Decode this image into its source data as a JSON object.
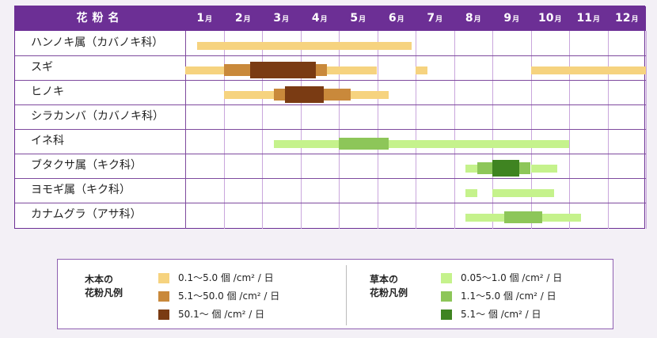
{
  "header": {
    "name_label": "花粉名",
    "months": [
      {
        "num": "1",
        "unit": "月"
      },
      {
        "num": "2",
        "unit": "月"
      },
      {
        "num": "3",
        "unit": "月"
      },
      {
        "num": "4",
        "unit": "月"
      },
      {
        "num": "5",
        "unit": "月"
      },
      {
        "num": "6",
        "unit": "月"
      },
      {
        "num": "7",
        "unit": "月"
      },
      {
        "num": "8",
        "unit": "月"
      },
      {
        "num": "9",
        "unit": "月"
      },
      {
        "num": "10",
        "unit": "月"
      },
      {
        "num": "11",
        "unit": "月"
      },
      {
        "num": "12",
        "unit": "月"
      }
    ]
  },
  "rows": [
    {
      "label": "ハンノキ属（カバノキ科）",
      "type": "tree",
      "bars": [
        {
          "start": 1.3,
          "end": 6.9,
          "level": 1
        }
      ]
    },
    {
      "label": "スギ",
      "type": "tree",
      "bars": [
        {
          "start": 1.0,
          "end": 2.0,
          "level": 1
        },
        {
          "start": 2.0,
          "end": 2.7,
          "level": 2
        },
        {
          "start": 2.7,
          "end": 4.4,
          "level": 3
        },
        {
          "start": 4.4,
          "end": 4.7,
          "level": 2
        },
        {
          "start": 4.7,
          "end": 6.0,
          "level": 1
        },
        {
          "start": 7.0,
          "end": 7.3,
          "level": 1
        },
        {
          "start": 10.0,
          "end": 13.0,
          "level": 1
        }
      ]
    },
    {
      "label": "ヒノキ",
      "type": "tree",
      "bars": [
        {
          "start": 2.0,
          "end": 3.3,
          "level": 1
        },
        {
          "start": 3.3,
          "end": 3.6,
          "level": 2
        },
        {
          "start": 3.6,
          "end": 4.6,
          "level": 3
        },
        {
          "start": 4.6,
          "end": 5.3,
          "level": 2
        },
        {
          "start": 5.3,
          "end": 6.3,
          "level": 1
        }
      ]
    },
    {
      "label": "シラカンバ（カバノキ科）",
      "type": "tree",
      "bars": []
    },
    {
      "label": "イネ科",
      "type": "grass",
      "bars": [
        {
          "start": 3.3,
          "end": 5.0,
          "level": 1
        },
        {
          "start": 5.0,
          "end": 6.3,
          "level": 2
        },
        {
          "start": 6.3,
          "end": 11.0,
          "level": 1
        }
      ]
    },
    {
      "label": "ブタクサ属（キク科）",
      "type": "grass",
      "bars": [
        {
          "start": 8.3,
          "end": 8.6,
          "level": 1
        },
        {
          "start": 8.6,
          "end": 9.0,
          "level": 2
        },
        {
          "start": 9.0,
          "end": 9.7,
          "level": 3
        },
        {
          "start": 9.7,
          "end": 10.0,
          "level": 2
        },
        {
          "start": 10.0,
          "end": 10.7,
          "level": 1
        }
      ]
    },
    {
      "label": "ヨモギ属（キク科）",
      "type": "grass",
      "bars": [
        {
          "start": 8.3,
          "end": 8.6,
          "level": 1
        },
        {
          "start": 9.0,
          "end": 10.6,
          "level": 1
        }
      ]
    },
    {
      "label": "カナムグラ（アサ科）",
      "type": "grass",
      "bars": [
        {
          "start": 8.3,
          "end": 9.3,
          "level": 1
        },
        {
          "start": 9.3,
          "end": 10.3,
          "level": 2
        },
        {
          "start": 10.3,
          "end": 11.3,
          "level": 1
        }
      ]
    }
  ],
  "colors": {
    "tree": [
      "#f6d37f",
      "#c9893b",
      "#7a3b13"
    ],
    "grass": [
      "#c5f28c",
      "#8dc659",
      "#3f8421"
    ]
  },
  "legend": {
    "tree_title": [
      "木本の",
      "花粉凡例"
    ],
    "tree_items": [
      "0.1～5.0 個 /cm² / 日",
      "5.1～50.0 個 /cm² / 日",
      "50.1～ 個 /cm² / 日"
    ],
    "grass_title": [
      "草本の",
      "花粉凡例"
    ],
    "grass_items": [
      "0.05～1.0 個 /cm² / 日",
      "1.1～5.0 個 /cm² / 日",
      "5.1～ 個 /cm² / 日"
    ]
  }
}
